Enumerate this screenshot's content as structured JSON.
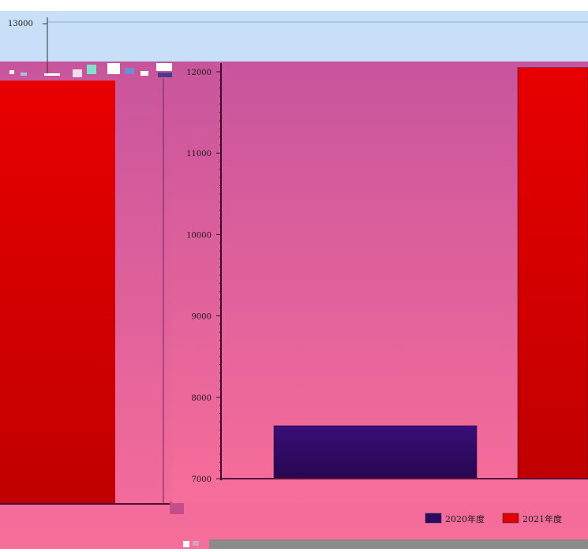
{
  "chart_data": {
    "type": "bar",
    "categories": [
      "",
      ""
    ],
    "series": [
      {
        "name": "2020年度",
        "values": [
          7650,
          null
        ],
        "color": "#2b0a63"
      },
      {
        "name": "2021年度",
        "values": [
          null,
          12050
        ],
        "color": "#e00000"
      }
    ],
    "ylim": [
      7000,
      12000
    ],
    "yticks": [
      7000,
      8000,
      9000,
      10000,
      11000,
      12000
    ],
    "ytick_labels": [
      "7000",
      "8000",
      "9000",
      "10000",
      "11000",
      "12000"
    ],
    "legend_position": "bottom-right",
    "grid": false,
    "background_gradient": [
      "#c8559c",
      "#f76e9a"
    ]
  },
  "back_layer": {
    "ytick_label": "13000",
    "bar_value": 12300,
    "panel_color": "#c7e0f7",
    "bar_color": "#e00000"
  }
}
